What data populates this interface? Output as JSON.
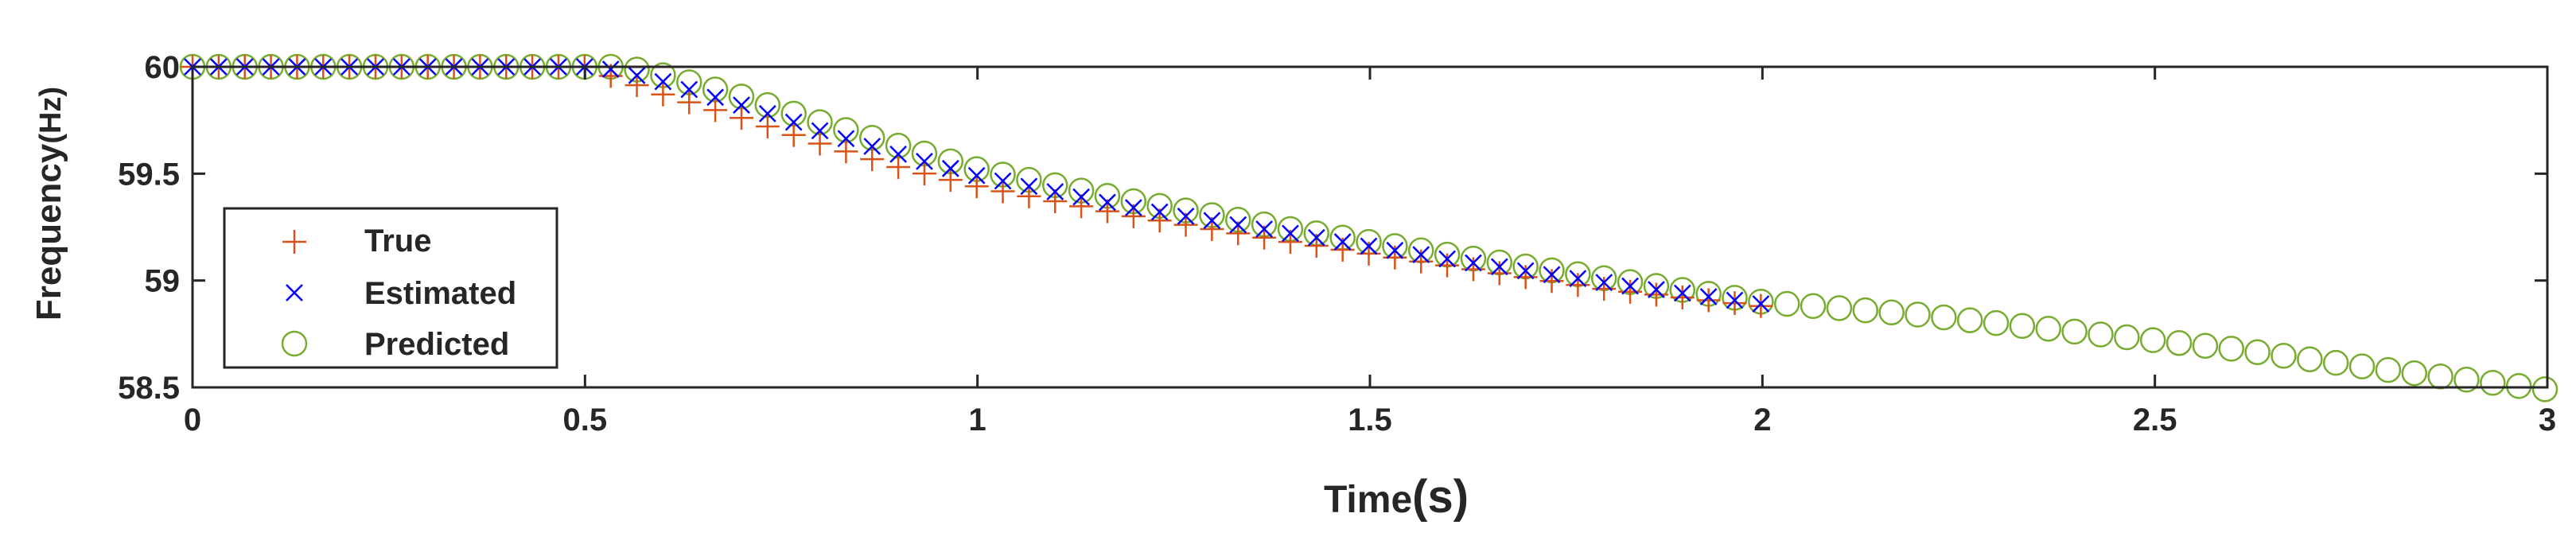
{
  "chart_data": {
    "type": "scatter",
    "xlabel_main": "Time",
    "xlabel_unit": "(s)",
    "ylabel_main": "Frequency",
    "ylabel_unit": "(Hz)",
    "xlim": [
      0,
      3
    ],
    "ylim": [
      58.5,
      60
    ],
    "xticks": [
      0,
      0.5,
      1,
      1.5,
      2,
      2.5,
      3
    ],
    "xtick_labels": [
      "0",
      "0.5",
      "1",
      "1.5",
      "2",
      "2.5",
      "3"
    ],
    "yticks": [
      58.5,
      59,
      59.5,
      60
    ],
    "ytick_labels": [
      "58.5",
      "59",
      "59.5",
      "60"
    ],
    "legend_position": "bottom-left",
    "series": [
      {
        "name": "True",
        "marker": "plus",
        "color": "#d95319",
        "x_start": 0,
        "x_step": 0.0333,
        "x_end": 2.0,
        "breakpoints": [
          [
            0,
            60.0
          ],
          [
            0.5,
            60.0
          ],
          [
            0.6,
            59.87
          ],
          [
            0.7,
            59.76
          ],
          [
            0.8,
            59.64
          ],
          [
            0.9,
            59.53
          ],
          [
            1.0,
            59.44
          ],
          [
            1.2,
            59.3
          ],
          [
            1.4,
            59.18
          ],
          [
            1.6,
            59.07
          ],
          [
            1.8,
            58.96
          ],
          [
            2.0,
            58.88
          ]
        ]
      },
      {
        "name": "Estimated",
        "marker": "x",
        "color": "#0000ff",
        "x_start": 0,
        "x_step": 0.0333,
        "x_end": 2.0,
        "breakpoints": [
          [
            0,
            60.0
          ],
          [
            0.52,
            60.0
          ],
          [
            0.6,
            59.93
          ],
          [
            0.7,
            59.82
          ],
          [
            0.8,
            59.7
          ],
          [
            0.9,
            59.59
          ],
          [
            1.0,
            59.49
          ],
          [
            1.2,
            59.34
          ],
          [
            1.4,
            59.22
          ],
          [
            1.6,
            59.1
          ],
          [
            1.8,
            58.99
          ],
          [
            2.0,
            58.89
          ]
        ]
      },
      {
        "name": "Predicted",
        "marker": "circle",
        "color": "#77ac30",
        "x_start": 0,
        "x_step": 0.0333,
        "x_end": 3.0,
        "breakpoints": [
          [
            0,
            60.0
          ],
          [
            0.55,
            60.0
          ],
          [
            0.6,
            59.96
          ],
          [
            0.7,
            59.86
          ],
          [
            0.8,
            59.74
          ],
          [
            0.9,
            59.63
          ],
          [
            1.0,
            59.52
          ],
          [
            1.2,
            59.37
          ],
          [
            1.4,
            59.24
          ],
          [
            1.6,
            59.12
          ],
          [
            1.8,
            59.01
          ],
          [
            2.0,
            58.9
          ],
          [
            2.2,
            58.84
          ],
          [
            2.4,
            58.76
          ],
          [
            2.6,
            58.68
          ],
          [
            2.8,
            58.58
          ],
          [
            3.0,
            58.49
          ]
        ]
      }
    ]
  }
}
